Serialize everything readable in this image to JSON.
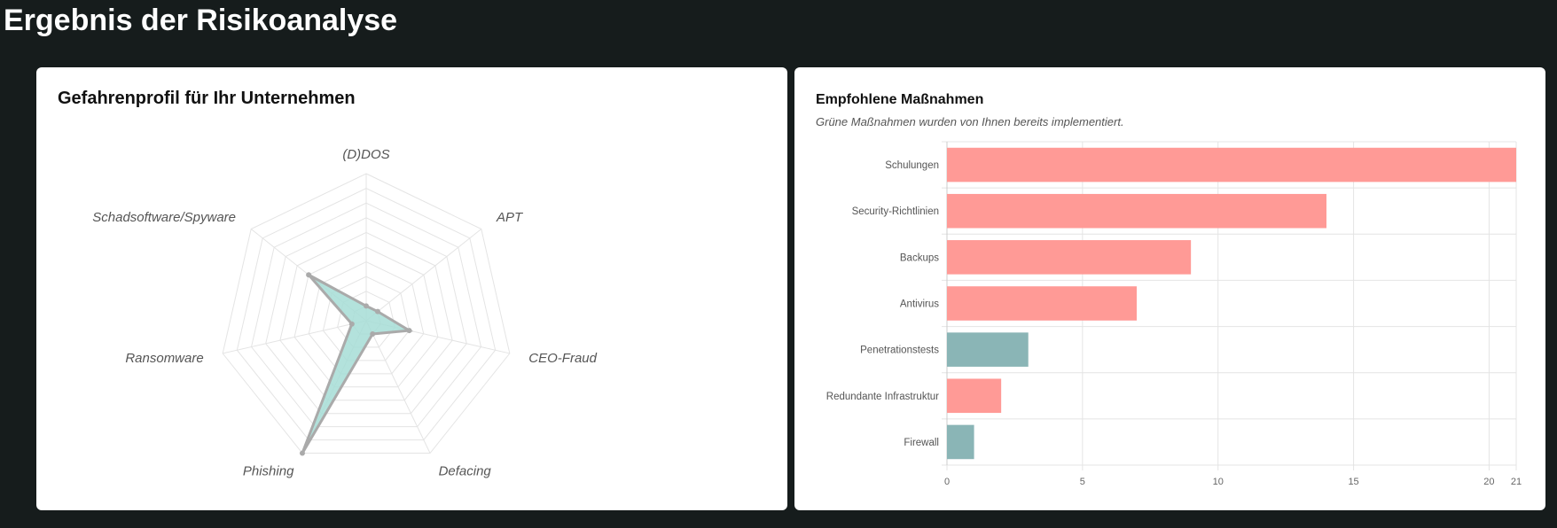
{
  "page": {
    "title": "Ergebnis der Risikoanalyse"
  },
  "radar_card": {
    "title": "Gefahrenprofil für Ihr Unternehmen"
  },
  "bar_card": {
    "title": "Empfohlene Maßnahmen",
    "subtitle": "Grüne Maßnahmen wurden von Ihnen bereits implementiert."
  },
  "colors": {
    "background": "#161c1c",
    "card": "#ffffff",
    "radar_fill": "#a6ddd6",
    "radar_stroke": "#aaaaaa",
    "bar_open": "#ff9a96",
    "bar_implemented": "#8ab5b6",
    "grid": "#e4e4e4"
  },
  "chart_data": [
    {
      "type": "radar",
      "title": "Gefahrenprofil für Ihr Unternehmen",
      "axes": [
        "(D)DOS",
        "APT",
        "CEO-Fraud",
        "Defacing",
        "Phishing",
        "Ransomware",
        "Schadsoftware/Spyware"
      ],
      "values": [
        1,
        1,
        3,
        1,
        10,
        1,
        5
      ],
      "max": 10,
      "rings": 10,
      "grid": true
    },
    {
      "type": "bar",
      "orientation": "horizontal",
      "title": "Empfohlene Maßnahmen",
      "subtitle": "Grüne Maßnahmen wurden von Ihnen bereits implementiert.",
      "categories": [
        "Schulungen",
        "Security-Richtlinien",
        "Backups",
        "Antivirus",
        "Penetrationstests",
        "Redundante Infrastruktur",
        "Firewall"
      ],
      "values": [
        21,
        14,
        9,
        7,
        3,
        2,
        1
      ],
      "implemented": [
        false,
        false,
        false,
        false,
        true,
        false,
        true
      ],
      "xlim": [
        0,
        21
      ],
      "xticks": [
        0,
        5,
        10,
        15,
        20,
        21
      ],
      "grid": true
    }
  ]
}
